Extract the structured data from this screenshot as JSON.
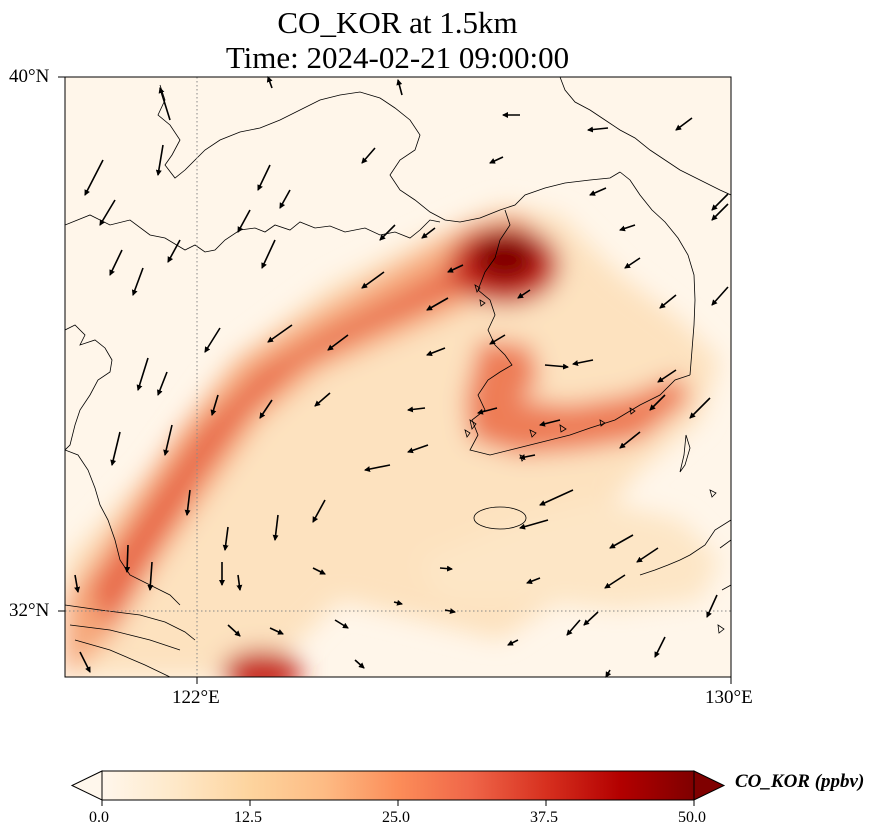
{
  "title": {
    "line1": "CO_KOR at 1.5km",
    "line2": "Time: 2024-02-21 09:00:00"
  },
  "map": {
    "lat_labels": [
      "40°N",
      "32°N"
    ],
    "lon_labels": [
      "122°E",
      "130°E"
    ],
    "extent": {
      "lon_min": 120.4,
      "lon_max": 130.0,
      "lat_min": 31.0,
      "lat_max": 40.0
    },
    "gridlines": {
      "lons": [
        122
      ],
      "lats": [
        32
      ],
      "style": "dotted"
    },
    "field": "CO_KOR concentration (ppbv)",
    "wind_vectors": true
  },
  "colorbar": {
    "label": "CO_KOR (ppbv)",
    "ticks": [
      "0.0",
      "12.5",
      "25.0",
      "37.5",
      "50.0"
    ],
    "range": [
      0,
      50
    ],
    "extend": "both",
    "colormap": "OrRd",
    "colors": [
      "#fff7ec",
      "#fee8c8",
      "#fdd49e",
      "#fdbb84",
      "#fc8d59",
      "#ef6548",
      "#d7301f",
      "#b30000",
      "#7f0000"
    ]
  }
}
